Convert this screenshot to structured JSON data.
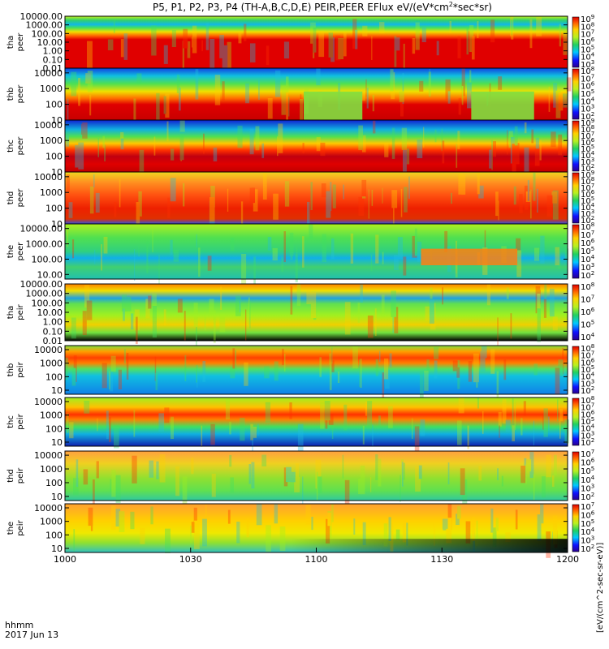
{
  "chart_data": {
    "type": "heatmap",
    "title": "P5, P1, P2, P3, P4 (TH-A,B,C,D,E) PEIR,PEER EFlux eV/(eV*cm^2*sec*sr)",
    "title_parts": {
      "prefix": "P5, P1, P2, P3, P4 (TH-A,B,C,D,E) PEIR,PEER EFlux eV/(eV*cm",
      "sup": "2",
      "suffix": "*sec*sr)"
    },
    "time_axis": {
      "label": "hhmm",
      "date": "2017 Jun 13",
      "range": [
        "10:00",
        "12:00"
      ],
      "ticks": [
        "1000",
        "1030",
        "1100",
        "1130",
        "1200"
      ],
      "tick_minutes": [
        0,
        30,
        60,
        90,
        120
      ]
    },
    "colorbar_units": "[eV/(cm^2-sec-sr-eV)]",
    "panels": [
      {
        "probe": "tha",
        "species": "peer",
        "ytick_labels": [
          "10000.00",
          "1000.00",
          "100.00",
          "10.00",
          "1.00",
          "0.10",
          "0.01"
        ],
        "ylim": [
          0.01,
          10000
        ],
        "ylog": true,
        "cb_exponents": [
          "3",
          "4",
          "5",
          "6",
          "7",
          "8",
          "9"
        ],
        "band_center": [
          0.02,
          0.02,
          0.02,
          0.02,
          0.02
        ],
        "band_center_at_minutes": [
          0,
          30,
          60,
          90,
          120
        ]
      },
      {
        "probe": "thb",
        "species": "peer",
        "ytick_labels": [
          "10000",
          "1000",
          "100",
          "10"
        ],
        "ylim": [
          10,
          20000
        ],
        "ylog": true,
        "cb_exponents": [
          "2",
          "3",
          "4",
          "5",
          "6",
          "7",
          "8"
        ],
        "low_flux_interval_minutes": [
          [
            57,
            71
          ],
          [
            97,
            112
          ]
        ]
      },
      {
        "probe": "thc",
        "species": "peer",
        "ytick_labels": [
          "10000",
          "1000",
          "100",
          "10"
        ],
        "ylim": [
          10,
          20000
        ],
        "ylog": true,
        "cb_exponents": [
          "2",
          "3",
          "4",
          "5",
          "6",
          "7",
          "8",
          "9"
        ]
      },
      {
        "probe": "thd",
        "species": "peer",
        "ytick_labels": [
          "10000",
          "1000",
          "100",
          "10"
        ],
        "ylim": [
          10,
          20000
        ],
        "ylog": true,
        "cb_exponents": [
          "2",
          "3",
          "4",
          "5",
          "6",
          "7",
          "8",
          "9"
        ]
      },
      {
        "probe": "the",
        "species": "peer",
        "ytick_labels": [
          "10000.00",
          "1000.00",
          "100.00",
          "10.00"
        ],
        "ylim": [
          5,
          20000
        ],
        "ylog": true,
        "cb_exponents": [
          "2",
          "3",
          "4",
          "5",
          "6",
          "7",
          "8"
        ],
        "enhancement_interval_minutes": [
          [
            85,
            108
          ]
        ]
      },
      {
        "probe": "tha",
        "species": "peir",
        "ytick_labels": [
          "10000.00",
          "1000.00",
          "100.00",
          "10.00",
          "1.00",
          "0.10",
          "0.01"
        ],
        "ylim": [
          0.01,
          10000
        ],
        "ylog": true,
        "cb_exponents": [
          "4",
          "5",
          "6",
          "7",
          "8"
        ]
      },
      {
        "probe": "thb",
        "species": "peir",
        "ytick_labels": [
          "10000",
          "1000",
          "100",
          "10"
        ],
        "ylim": [
          5,
          20000
        ],
        "ylog": true,
        "cb_exponents": [
          "2",
          "3",
          "4",
          "5",
          "6",
          "7",
          "8"
        ]
      },
      {
        "probe": "thc",
        "species": "peir",
        "ytick_labels": [
          "10000",
          "1000",
          "100",
          "10"
        ],
        "ylim": [
          5,
          20000
        ],
        "ylog": true,
        "cb_exponents": [
          "2",
          "3",
          "4",
          "5",
          "6",
          "7",
          "8"
        ]
      },
      {
        "probe": "thd",
        "species": "peir",
        "ytick_labels": [
          "10000",
          "1000",
          "100",
          "10"
        ],
        "ylim": [
          5,
          20000
        ],
        "ylog": true,
        "cb_exponents": [
          "2",
          "3",
          "4",
          "5",
          "6",
          "7"
        ]
      },
      {
        "probe": "the",
        "species": "peir",
        "ytick_labels": [
          "10000",
          "1000",
          "100",
          "10"
        ],
        "ylim": [
          5,
          20000
        ],
        "ylog": true,
        "cb_exponents": [
          "2",
          "3",
          "4",
          "5",
          "6",
          "7"
        ]
      }
    ]
  }
}
